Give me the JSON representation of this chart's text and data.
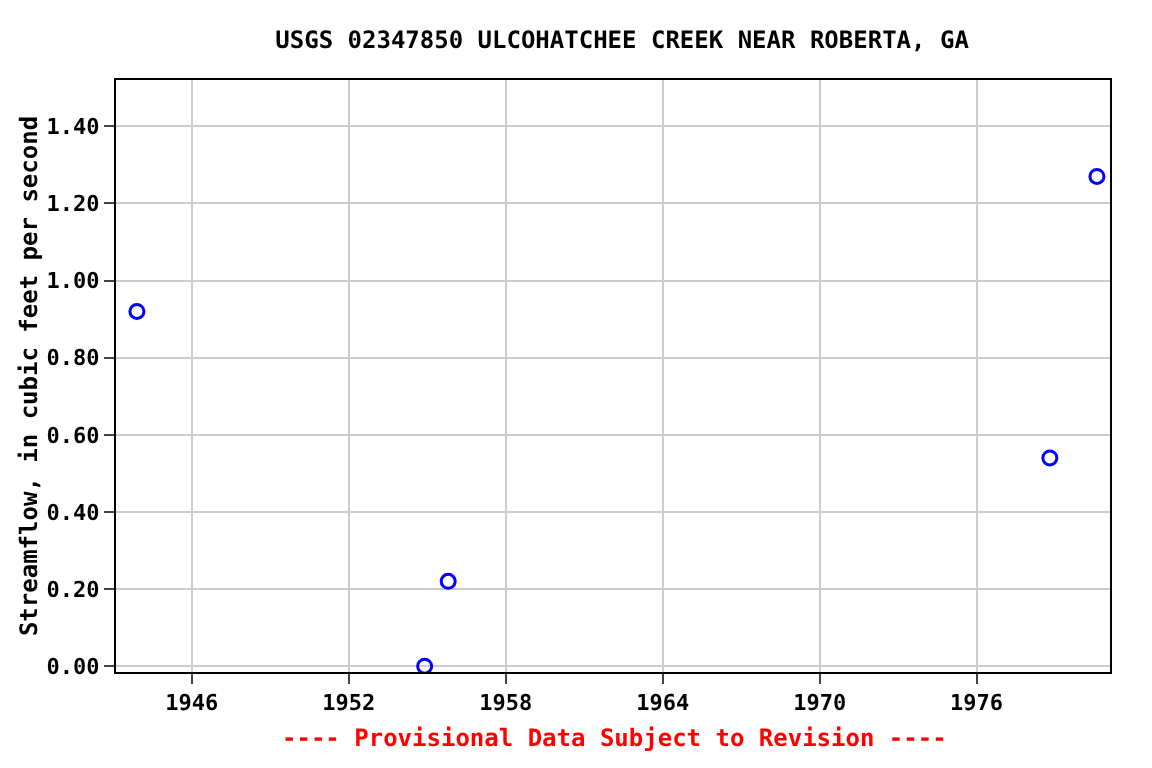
{
  "chart_data": {
    "type": "scatter",
    "title": "USGS 02347850 ULCOHATCHEE CREEK NEAR ROBERTA, GA",
    "ylabel": "Streamflow, in cubic feet per second",
    "x": [
      1943.9,
      1954.9,
      1955.8,
      1978.8,
      1980.6
    ],
    "series": [
      {
        "color": "#0000ff",
        "values": [
          0.92,
          0.0,
          0.22,
          0.54,
          1.27
        ]
      }
    ],
    "xlim": [
      1943.1,
      1981.1
    ],
    "xticks": [
      1946,
      1952,
      1958,
      1964,
      1970,
      1976
    ],
    "ylim": [
      -0.015,
      1.52
    ],
    "yticks": [
      {
        "value": 0,
        "label": "0.00"
      },
      {
        "value": 0.2,
        "label": "0.20"
      },
      {
        "value": 0.4,
        "label": "0.40"
      },
      {
        "value": 0.6,
        "label": "0.60"
      },
      {
        "value": 0.8,
        "label": "0.80"
      },
      {
        "value": 1.0,
        "label": "1.00"
      },
      {
        "value": 1.2,
        "label": "1.20"
      },
      {
        "value": 1.4,
        "label": "1.40"
      }
    ],
    "grid": true,
    "marker": "circle",
    "annotations": [
      "---- Provisional Data Subject to Revision ----"
    ]
  }
}
